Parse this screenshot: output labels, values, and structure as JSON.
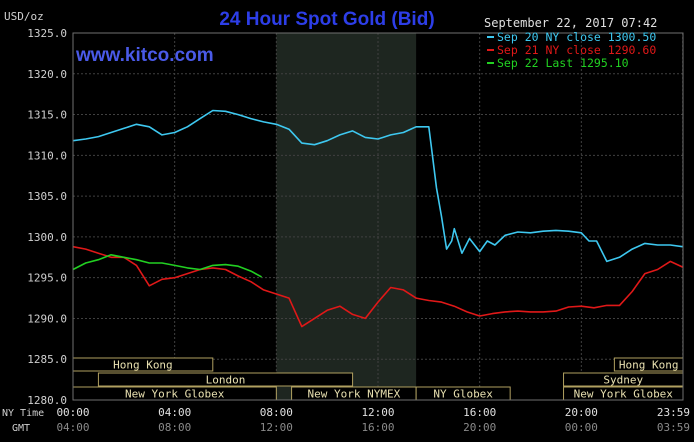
{
  "chart_data": {
    "type": "line",
    "title": "24 Hour Spot Gold (Bid)",
    "ylabel": "USD/oz",
    "watermark": "www.kitco.com",
    "timestamp": "September 22, 2017 07:42",
    "ylim": [
      1280,
      1325
    ],
    "yticks": [
      "1325.0",
      "1320.0",
      "1315.0",
      "1310.0",
      "1305.0",
      "1300.0",
      "1295.0",
      "1290.0",
      "1285.0",
      "1280.0"
    ],
    "xlim": [
      0,
      24
    ],
    "x_axis_labels": {
      "ny_prefix": "NY Time",
      "gmt_prefix": "GMT",
      "ny": [
        "00:00",
        "04:00",
        "08:00",
        "12:00",
        "16:00",
        "20:00",
        "23:59"
      ],
      "gmt": [
        "04:00",
        "08:00",
        "12:00",
        "16:00",
        "20:00",
        "00:00",
        "03:59"
      ]
    },
    "shaded_period": [
      8,
      13.5
    ],
    "grid": true,
    "legend_position": "top-right",
    "colors": {
      "background": "#000000",
      "grid": "#404040",
      "shade": "#1e2620",
      "title": "#2d3ee8",
      "watermark": "#4a5ae8",
      "axis_text": "#d0d0d0",
      "session_border": "#b0a060",
      "session_text": "#e8e0b0"
    },
    "sessions": [
      {
        "label": "Hong Kong",
        "row": 0,
        "start": 0,
        "end": 5.5
      },
      {
        "label": "Hong Kong",
        "row": 0,
        "start": 21.3,
        "end": 24
      },
      {
        "label": "London",
        "row": 1,
        "start": 1.0,
        "end": 11
      },
      {
        "label": "Sydney",
        "row": 1,
        "start": 19.3,
        "end": 24
      },
      {
        "label": "New York Globex",
        "row": 2,
        "start": 0,
        "end": 8
      },
      {
        "label": "New York NYMEX",
        "row": 2,
        "start": 8.6,
        "end": 13.5
      },
      {
        "label": "NY Globex",
        "row": 2,
        "start": 13.5,
        "end": 17.2
      },
      {
        "label": "New York Globex",
        "row": 2,
        "start": 19.3,
        "end": 24
      }
    ],
    "series": [
      {
        "name": "Sep 20 NY close 1300.50",
        "color": "#3ec8f0",
        "x": [
          0,
          0.5,
          1,
          1.5,
          2,
          2.5,
          3,
          3.5,
          4,
          4.5,
          5,
          5.5,
          6,
          6.5,
          7,
          7.5,
          8,
          8.5,
          9,
          9.5,
          10,
          10.5,
          11,
          11.5,
          12,
          12.5,
          13,
          13.5,
          14,
          14.1,
          14.3,
          14.5,
          14.7,
          14.9,
          15,
          15.3,
          15.6,
          16,
          16.3,
          16.6,
          17,
          17.5,
          18,
          18.5,
          19,
          19.5,
          20,
          20.3,
          20.6,
          21,
          21.5,
          22,
          22.5,
          23,
          23.5,
          23.99
        ],
        "values": [
          1311.8,
          1312.0,
          1312.3,
          1312.8,
          1313.3,
          1313.8,
          1313.5,
          1312.5,
          1312.8,
          1313.5,
          1314.5,
          1315.5,
          1315.4,
          1315.0,
          1314.5,
          1314.1,
          1313.8,
          1313.2,
          1311.5,
          1311.3,
          1311.8,
          1312.5,
          1313.0,
          1312.2,
          1312.0,
          1312.5,
          1312.8,
          1313.5,
          1313.5,
          1311.0,
          1306.0,
          1302.5,
          1298.5,
          1299.5,
          1301.0,
          1298.0,
          1299.8,
          1298.2,
          1299.5,
          1299.0,
          1300.2,
          1300.6,
          1300.5,
          1300.7,
          1300.8,
          1300.7,
          1300.5,
          1299.5,
          1299.5,
          1297.0,
          1297.5,
          1298.5,
          1299.2,
          1299.0,
          1299.0,
          1298.8
        ]
      },
      {
        "name": "Sep 21 NY close 1290.60",
        "color": "#e01818",
        "x": [
          0,
          0.5,
          1,
          1.5,
          2,
          2.5,
          3,
          3.5,
          4,
          4.5,
          5,
          5.5,
          6,
          6.5,
          7,
          7.5,
          8,
          8.5,
          9,
          9.5,
          10,
          10.5,
          11,
          11.5,
          12,
          12.5,
          13,
          13.5,
          14,
          14.5,
          15,
          15.5,
          16,
          16.5,
          17,
          17.5,
          18,
          18.5,
          19,
          19.5,
          20,
          20.5,
          21,
          21.5,
          22,
          22.5,
          23,
          23.5,
          23.99
        ],
        "values": [
          1298.8,
          1298.5,
          1298.0,
          1297.5,
          1297.5,
          1296.5,
          1294.0,
          1294.8,
          1295.0,
          1295.5,
          1296.0,
          1296.2,
          1296.0,
          1295.2,
          1294.5,
          1293.5,
          1293.0,
          1292.5,
          1289.0,
          1290.0,
          1291.0,
          1291.5,
          1290.5,
          1290.0,
          1292.0,
          1293.8,
          1293.5,
          1292.5,
          1292.2,
          1292.0,
          1291.5,
          1290.8,
          1290.3,
          1290.6,
          1290.8,
          1290.9,
          1290.8,
          1290.8,
          1290.9,
          1291.4,
          1291.5,
          1291.3,
          1291.6,
          1291.6,
          1293.3,
          1295.5,
          1296.0,
          1297.0,
          1296.3
        ]
      },
      {
        "name": "Sep 22 Last 1295.10",
        "color": "#22d022",
        "x": [
          0,
          0.5,
          1,
          1.5,
          2,
          2.5,
          3,
          3.5,
          4,
          4.5,
          5,
          5.5,
          6,
          6.5,
          7,
          7.42
        ],
        "values": [
          1296.0,
          1296.8,
          1297.2,
          1297.8,
          1297.5,
          1297.2,
          1296.8,
          1296.8,
          1296.5,
          1296.2,
          1296.0,
          1296.5,
          1296.6,
          1296.4,
          1295.8,
          1295.1
        ]
      }
    ]
  }
}
